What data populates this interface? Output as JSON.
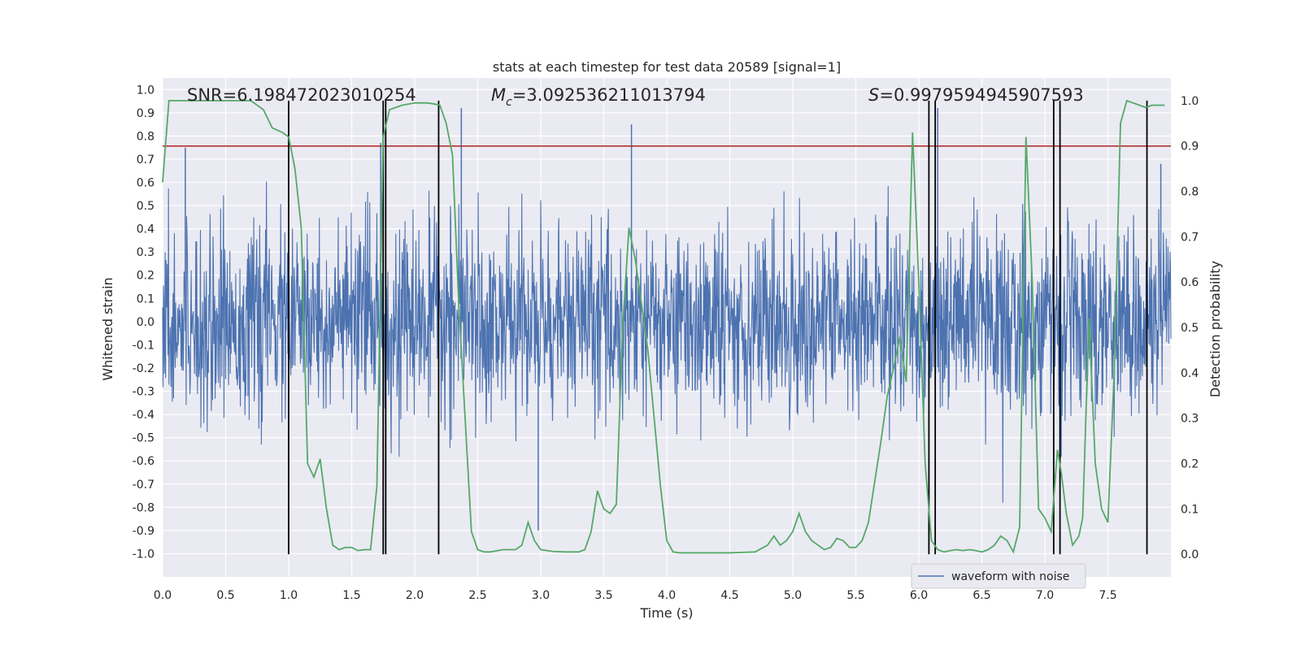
{
  "chart_data": {
    "type": "line",
    "title": "stats at each timestep for test data 20589 [signal=1]",
    "xlabel": "Time (s)",
    "ylabel_left": "Whitened strain",
    "ylabel_right": "Detection probability",
    "xlim": [
      0.0,
      8.0
    ],
    "ylim_left": [
      -1.1,
      1.05
    ],
    "ylim_right": [
      -0.05,
      1.05
    ],
    "grid": true,
    "x_ticks": [
      "0.0",
      "0.5",
      "1.0",
      "1.5",
      "2.0",
      "2.5",
      "3.0",
      "3.5",
      "4.0",
      "4.5",
      "5.0",
      "5.5",
      "6.0",
      "6.5",
      "7.0",
      "7.5"
    ],
    "x_tick_values": [
      0.0,
      0.5,
      1.0,
      1.5,
      2.0,
      2.5,
      3.0,
      3.5,
      4.0,
      4.5,
      5.0,
      5.5,
      6.0,
      6.5,
      7.0,
      7.5
    ],
    "y_ticks_left": [
      "1.0",
      "0.9",
      "0.8",
      "0.7",
      "0.6",
      "0.5",
      "0.4",
      "0.3",
      "0.2",
      "0.1",
      "0.0",
      "-0.1",
      "-0.2",
      "-0.3",
      "-0.4",
      "-0.5",
      "-0.6",
      "-0.7",
      "-0.8",
      "-0.9",
      "-1.0"
    ],
    "y_tick_values_left": [
      1.0,
      0.9,
      0.8,
      0.7,
      0.6,
      0.5,
      0.4,
      0.3,
      0.2,
      0.1,
      0.0,
      -0.1,
      -0.2,
      -0.3,
      -0.4,
      -0.5,
      -0.6,
      -0.7,
      -0.8,
      -0.9,
      -1.0
    ],
    "y_ticks_right": [
      "1.0",
      "0.9",
      "0.8",
      "0.7",
      "0.6",
      "0.5",
      "0.4",
      "0.3",
      "0.2",
      "0.1",
      "0.0"
    ],
    "y_tick_values_right": [
      1.0,
      0.9,
      0.8,
      0.7,
      0.6,
      0.5,
      0.4,
      0.3,
      0.2,
      0.1,
      0.0
    ],
    "annotations": {
      "snr": "SNR=6.198472023010254",
      "mc_symbol": "M",
      "mc_sub": "c",
      "mc_value": "=3.092536211013794",
      "s_symbol": "S",
      "s_value": "=0.9979594945907593"
    },
    "threshold_right": 0.9,
    "vertical_lines_x": [
      1.0,
      1.75,
      1.77,
      2.19,
      6.08,
      6.13,
      7.07,
      7.12,
      7.81
    ],
    "noisy_waveform": {
      "name": "waveform with noise",
      "color": "#4c72b0",
      "typical_envelope": [
        -0.45,
        0.45
      ],
      "peaks": [
        {
          "x": 0.18,
          "y": 0.75
        },
        {
          "x": 1.73,
          "y": 0.77
        },
        {
          "x": 2.37,
          "y": 0.92
        },
        {
          "x": 3.72,
          "y": 0.85
        },
        {
          "x": 6.15,
          "y": 0.92
        },
        {
          "x": 1.77,
          "y": -0.97
        },
        {
          "x": 2.98,
          "y": -0.9
        },
        {
          "x": 7.92,
          "y": 0.68
        }
      ]
    },
    "probability_series": {
      "color": "#55a868",
      "x": [
        0.0,
        0.05,
        0.1,
        0.2,
        0.3,
        0.4,
        0.5,
        0.6,
        0.7,
        0.8,
        0.87,
        0.95,
        1.0,
        1.05,
        1.1,
        1.15,
        1.2,
        1.25,
        1.3,
        1.35,
        1.4,
        1.45,
        1.5,
        1.55,
        1.6,
        1.65,
        1.7,
        1.75,
        1.8,
        1.85,
        1.9,
        2.0,
        2.05,
        2.1,
        2.15,
        2.2,
        2.25,
        2.3,
        2.35,
        2.4,
        2.45,
        2.5,
        2.55,
        2.6,
        2.7,
        2.8,
        2.85,
        2.9,
        2.95,
        3.0,
        3.05,
        3.1,
        3.2,
        3.3,
        3.35,
        3.4,
        3.45,
        3.5,
        3.55,
        3.6,
        3.65,
        3.7,
        3.75,
        3.8,
        3.85,
        3.9,
        3.95,
        4.0,
        4.05,
        4.1,
        4.2,
        4.3,
        4.4,
        4.5,
        4.6,
        4.7,
        4.8,
        4.85,
        4.9,
        4.95,
        5.0,
        5.05,
        5.1,
        5.15,
        5.2,
        5.25,
        5.3,
        5.35,
        5.4,
        5.45,
        5.5,
        5.55,
        5.6,
        5.7,
        5.75,
        5.8,
        5.85,
        5.9,
        5.95,
        6.0,
        6.05,
        6.1,
        6.15,
        6.2,
        6.25,
        6.3,
        6.35,
        6.4,
        6.45,
        6.5,
        6.55,
        6.6,
        6.65,
        6.7,
        6.75,
        6.8,
        6.85,
        6.9,
        6.95,
        7.0,
        7.05,
        7.1,
        7.13,
        7.17,
        7.22,
        7.27,
        7.3,
        7.35,
        7.4,
        7.45,
        7.5,
        7.55,
        7.6,
        7.65,
        7.7,
        7.75,
        7.8,
        7.85,
        7.9,
        7.95
      ],
      "y": [
        0.82,
        1.0,
        1.0,
        1.0,
        1.0,
        1.0,
        1.0,
        1.0,
        1.0,
        0.98,
        0.94,
        0.93,
        0.92,
        0.85,
        0.72,
        0.2,
        0.17,
        0.21,
        0.1,
        0.02,
        0.01,
        0.015,
        0.015,
        0.008,
        0.01,
        0.01,
        0.15,
        0.92,
        0.98,
        0.985,
        0.99,
        0.995,
        0.995,
        0.995,
        0.993,
        0.99,
        0.95,
        0.88,
        0.55,
        0.3,
        0.05,
        0.01,
        0.005,
        0.005,
        0.01,
        0.01,
        0.02,
        0.07,
        0.03,
        0.01,
        0.008,
        0.006,
        0.005,
        0.005,
        0.01,
        0.05,
        0.14,
        0.1,
        0.09,
        0.11,
        0.5,
        0.72,
        0.65,
        0.55,
        0.45,
        0.3,
        0.15,
        0.03,
        0.005,
        0.003,
        0.003,
        0.003,
        0.003,
        0.003,
        0.004,
        0.005,
        0.02,
        0.04,
        0.02,
        0.03,
        0.05,
        0.09,
        0.05,
        0.03,
        0.02,
        0.01,
        0.015,
        0.035,
        0.03,
        0.015,
        0.015,
        0.03,
        0.07,
        0.25,
        0.35,
        0.41,
        0.48,
        0.38,
        0.93,
        0.6,
        0.2,
        0.03,
        0.01,
        0.005,
        0.008,
        0.01,
        0.008,
        0.01,
        0.008,
        0.005,
        0.01,
        0.02,
        0.04,
        0.03,
        0.005,
        0.06,
        0.92,
        0.6,
        0.1,
        0.08,
        0.05,
        0.23,
        0.18,
        0.09,
        0.02,
        0.04,
        0.08,
        0.52,
        0.2,
        0.1,
        0.07,
        0.4,
        0.95,
        1.0,
        0.995,
        0.99,
        0.985,
        0.99,
        0.99,
        0.99
      ]
    },
    "legend": {
      "position": "lower-right",
      "entries": [
        "waveform with noise"
      ]
    }
  }
}
